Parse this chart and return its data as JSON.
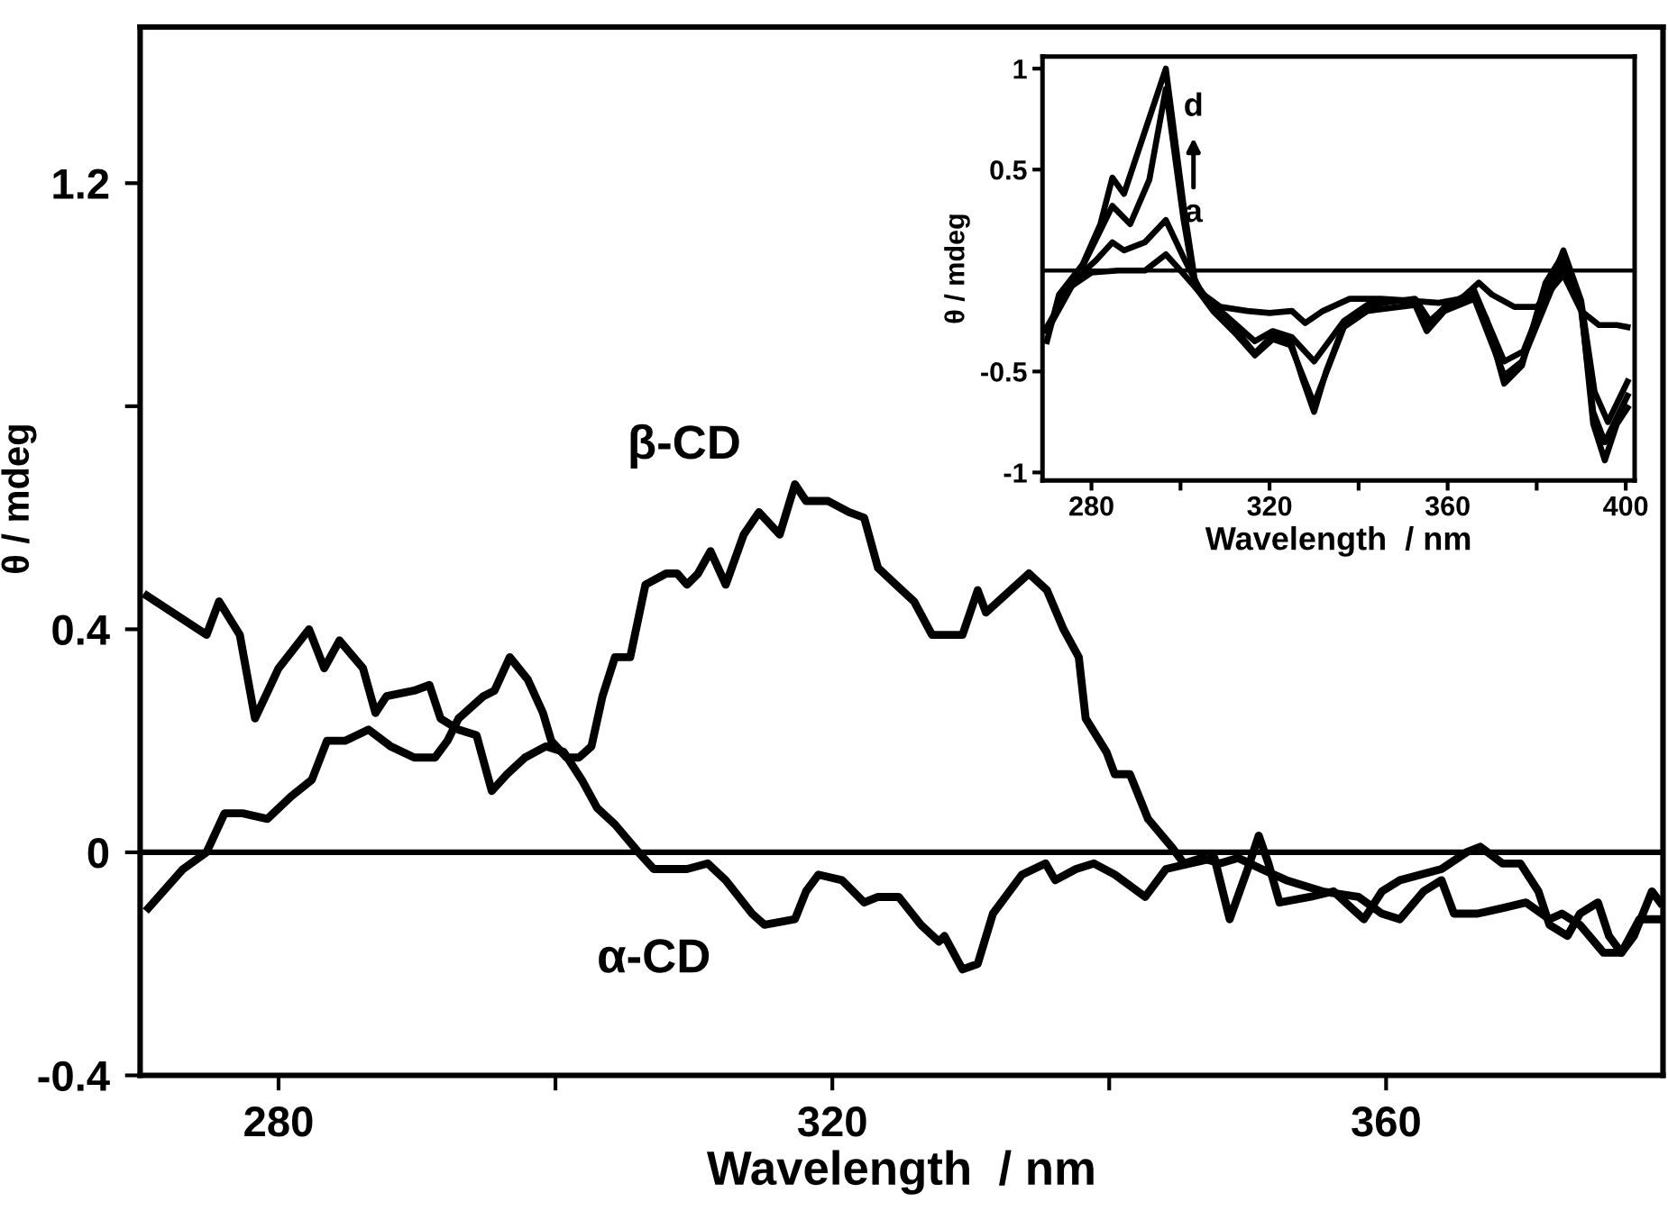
{
  "chart_data": [
    {
      "type": "line",
      "xlabel": "Wavelength  / nm",
      "ylabel": "θ / mdeg",
      "xlim": [
        270,
        380
      ],
      "ylim": [
        -0.4,
        1.48
      ],
      "xticks": [
        280,
        {
          "value": 300,
          "label": null
        },
        320,
        {
          "value": 340,
          "label": null
        },
        360
      ],
      "yticks": [
        -0.4,
        0,
        0.4,
        {
          "value": 0.8,
          "label": null
        },
        1.2
      ],
      "grid": false,
      "marker": "none",
      "line_style": "solid",
      "ref_lines": [
        {
          "axis": "y",
          "value": 0,
          "color": "#000000"
        }
      ],
      "annotations": [
        "β-CD",
        "α-CD"
      ],
      "series": [
        {
          "color": "#000000",
          "x": [
            270.5,
            274.8,
            275.7,
            277.2,
            278.3,
            280.0,
            282.2,
            283.3,
            284.4,
            286.1,
            287.0,
            287.8,
            289.8,
            290.9,
            291.7,
            293.0,
            294.3,
            295.4,
            296.5,
            297.8,
            299.3,
            300.6,
            301.9,
            303.0,
            304.3,
            306.0,
            307.1,
            309.5,
            311.0,
            312.3,
            314.2,
            315.1,
            317.3,
            318.1,
            319.0,
            320.7,
            322.3,
            323.3,
            324.8,
            326.4,
            327.7,
            328.1,
            329.4,
            330.5,
            331.6,
            333.7,
            335.4,
            336.1,
            337.6,
            338.9,
            340.4,
            342.6,
            344.1,
            345.8,
            347.6,
            348.7,
            350.0,
            350.8,
            351.5,
            352.3,
            354.5,
            356.2,
            357.5,
            358.4,
            359.7,
            361.0,
            364.0,
            365.8,
            366.8,
            368.4,
            369.7,
            371.0,
            371.8,
            373.1,
            374.0,
            375.3,
            376.1,
            377.0,
            377.9,
            379.2,
            379.8
          ],
          "values": [
            0.46,
            0.39,
            0.45,
            0.39,
            0.24,
            0.33,
            0.4,
            0.33,
            0.38,
            0.33,
            0.25,
            0.28,
            0.29,
            0.3,
            0.24,
            0.22,
            0.21,
            0.11,
            0.14,
            0.17,
            0.19,
            0.18,
            0.13,
            0.08,
            0.05,
            0.0,
            -0.03,
            -0.03,
            -0.02,
            -0.05,
            -0.11,
            -0.13,
            -0.12,
            -0.07,
            -0.04,
            -0.05,
            -0.09,
            -0.08,
            -0.08,
            -0.13,
            -0.16,
            -0.15,
            -0.21,
            -0.2,
            -0.11,
            -0.04,
            -0.02,
            -0.05,
            -0.03,
            -0.02,
            -0.04,
            -0.08,
            -0.03,
            -0.02,
            -0.01,
            -0.12,
            -0.03,
            0.03,
            -0.02,
            -0.09,
            -0.08,
            -0.07,
            -0.1,
            -0.12,
            -0.07,
            -0.05,
            -0.03,
            0.0,
            0.01,
            -0.02,
            -0.02,
            -0.07,
            -0.13,
            -0.15,
            -0.11,
            -0.09,
            -0.15,
            -0.18,
            -0.15,
            -0.07,
            -0.09
          ]
        },
        {
          "color": "#000000",
          "x": [
            270.6,
            273.1,
            274.8,
            276.1,
            277.4,
            279.2,
            280.9,
            282.4,
            283.5,
            284.8,
            286.5,
            288.1,
            289.8,
            291.3,
            292.2,
            293.0,
            294.8,
            295.6,
            296.7,
            298.0,
            299.1,
            299.7,
            300.8,
            301.7,
            302.6,
            303.4,
            304.3,
            305.4,
            306.5,
            308.0,
            308.8,
            309.5,
            310.3,
            311.2,
            312.3,
            313.6,
            314.7,
            316.2,
            317.3,
            318.1,
            319.7,
            321.2,
            322.3,
            323.3,
            324.6,
            325.9,
            327.2,
            329.4,
            330.5,
            331.1,
            334.2,
            335.5,
            336.7,
            337.8,
            338.3,
            339.8,
            340.4,
            341.5,
            342.8,
            344.5,
            345.4,
            346.7,
            348.0,
            349.3,
            351.0,
            352.8,
            355.4,
            358.0,
            359.7,
            361.0,
            362.7,
            364.0,
            364.9,
            366.6,
            368.4,
            370.1,
            371.8,
            372.7,
            374.0,
            375.7,
            377.0,
            378.3,
            379.6
          ],
          "values": [
            -0.1,
            -0.03,
            0.0,
            0.07,
            0.07,
            0.06,
            0.1,
            0.13,
            0.2,
            0.2,
            0.22,
            0.19,
            0.17,
            0.17,
            0.2,
            0.24,
            0.28,
            0.29,
            0.35,
            0.31,
            0.25,
            0.2,
            0.17,
            0.17,
            0.19,
            0.28,
            0.35,
            0.35,
            0.48,
            0.5,
            0.5,
            0.48,
            0.5,
            0.54,
            0.48,
            0.57,
            0.61,
            0.57,
            0.66,
            0.63,
            0.63,
            0.61,
            0.6,
            0.51,
            0.48,
            0.45,
            0.39,
            0.39,
            0.47,
            0.43,
            0.5,
            0.47,
            0.4,
            0.35,
            0.24,
            0.18,
            0.14,
            0.14,
            0.06,
            0.01,
            -0.02,
            -0.01,
            -0.02,
            -0.01,
            -0.03,
            -0.05,
            -0.07,
            -0.08,
            -0.11,
            -0.12,
            -0.07,
            -0.05,
            -0.11,
            -0.11,
            -0.1,
            -0.09,
            -0.12,
            -0.11,
            -0.13,
            -0.18,
            -0.18,
            -0.12,
            -0.12
          ]
        }
      ]
    },
    {
      "type": "line",
      "xlabel": "Wavelength  / nm",
      "ylabel": "θ / mdeg",
      "xlim": [
        269,
        402
      ],
      "ylim": [
        -1.04,
        1.06
      ],
      "xticks": [
        280,
        {
          "value": 300,
          "label": null
        },
        320,
        {
          "value": 340,
          "label": null
        },
        360,
        {
          "value": 380,
          "label": null
        },
        400
      ],
      "yticks": [
        -1,
        -0.5,
        0.5,
        1
      ],
      "grid": false,
      "marker": "none",
      "line_style": "solid",
      "ref_lines": [
        {
          "axis": "y",
          "value": 0,
          "color": "#000000"
        }
      ],
      "annotations": [
        "d",
        "a"
      ],
      "series": [
        {
          "color": "#000000",
          "x": [
            270,
            274,
            280,
            286,
            292,
            296.7,
            300,
            304,
            309,
            315,
            320,
            325,
            328,
            332,
            338,
            345,
            352,
            358,
            363,
            367,
            370,
            375,
            380,
            386,
            390,
            394,
            398,
            400.4
          ],
          "values": [
            -0.3,
            -0.1,
            -0.01,
            0.0,
            0.0,
            0.08,
            0.0,
            -0.1,
            -0.18,
            -0.2,
            -0.21,
            -0.2,
            -0.26,
            -0.2,
            -0.14,
            -0.14,
            -0.15,
            -0.16,
            -0.14,
            -0.06,
            -0.12,
            -0.18,
            -0.18,
            -0.02,
            -0.2,
            -0.27,
            -0.27,
            -0.28
          ]
        },
        {
          "color": "#000000",
          "x": [
            270,
            276,
            281,
            284.7,
            287.3,
            292,
            296.7,
            301,
            305,
            310,
            316.7,
            320.7,
            325,
            330,
            336.7,
            342,
            352.7,
            356,
            360,
            366,
            372.7,
            377,
            386,
            390,
            393,
            396,
            400.4
          ],
          "values": [
            -0.28,
            -0.05,
            0.05,
            0.14,
            0.1,
            0.14,
            0.25,
            0.05,
            -0.12,
            -0.22,
            -0.35,
            -0.3,
            -0.33,
            -0.45,
            -0.25,
            -0.17,
            -0.14,
            -0.25,
            -0.17,
            -0.1,
            -0.45,
            -0.4,
            0.1,
            -0.15,
            -0.6,
            -0.75,
            -0.55
          ]
        },
        {
          "color": "#000000",
          "x": [
            270,
            278,
            284.7,
            288.7,
            293,
            296.7,
            300.7,
            303.3,
            307.3,
            312.7,
            316.7,
            320.7,
            324.7,
            330,
            336.7,
            342,
            352.7,
            355.3,
            359.3,
            366,
            372.7,
            376.7,
            386,
            390,
            392.7,
            395.3,
            400.4
          ],
          "values": [
            -0.3,
            0.02,
            0.32,
            0.23,
            0.45,
            0.9,
            0.25,
            -0.08,
            -0.2,
            -0.32,
            -0.42,
            -0.34,
            -0.37,
            -0.66,
            -0.28,
            -0.2,
            -0.17,
            -0.3,
            -0.2,
            -0.14,
            -0.52,
            -0.45,
            0.05,
            -0.2,
            -0.7,
            -0.85,
            -0.62
          ]
        },
        {
          "color": "#000000",
          "x": [
            270,
            272.7,
            278,
            282,
            284.7,
            287.3,
            296.7,
            300.7,
            303.3,
            307.3,
            312.7,
            316.7,
            320.7,
            324.7,
            327.3,
            330,
            332.7,
            336.7,
            342,
            347.3,
            352.7,
            355.3,
            359.3,
            366,
            368.7,
            372.7,
            376.7,
            382,
            386,
            390,
            392.7,
            395.3,
            398,
            400.4
          ],
          "values": [
            -0.35,
            -0.12,
            0.03,
            0.23,
            0.46,
            0.38,
            1.0,
            0.32,
            -0.06,
            -0.18,
            -0.3,
            -0.41,
            -0.32,
            -0.35,
            -0.53,
            -0.7,
            -0.5,
            -0.27,
            -0.18,
            -0.15,
            -0.15,
            -0.28,
            -0.18,
            -0.12,
            -0.24,
            -0.56,
            -0.47,
            -0.06,
            0.08,
            -0.18,
            -0.76,
            -0.94,
            -0.76,
            -0.68
          ]
        }
      ]
    }
  ]
}
